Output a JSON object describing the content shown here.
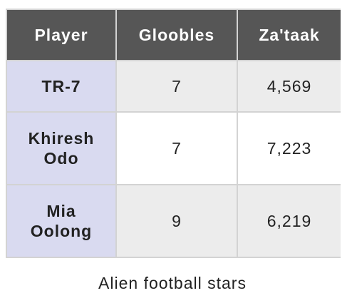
{
  "table": {
    "headers": [
      "Player",
      "Gloobles",
      "Za'taak"
    ],
    "rows": [
      {
        "player": [
          "TR-7"
        ],
        "gloobles": "7",
        "zataak": "4,569"
      },
      {
        "player": [
          "Khiresh",
          "Odo"
        ],
        "gloobles": "7",
        "zataak": "7,223"
      },
      {
        "player": [
          "Mia",
          "Oolong"
        ],
        "gloobles": "9",
        "zataak": "6,219"
      }
    ]
  },
  "caption": "Alien football stars",
  "colors": {
    "header_bg": "#565656",
    "player_bg": "#d9daf0",
    "row_alt_bg": "#ececec",
    "border": "#d3d3d3"
  }
}
